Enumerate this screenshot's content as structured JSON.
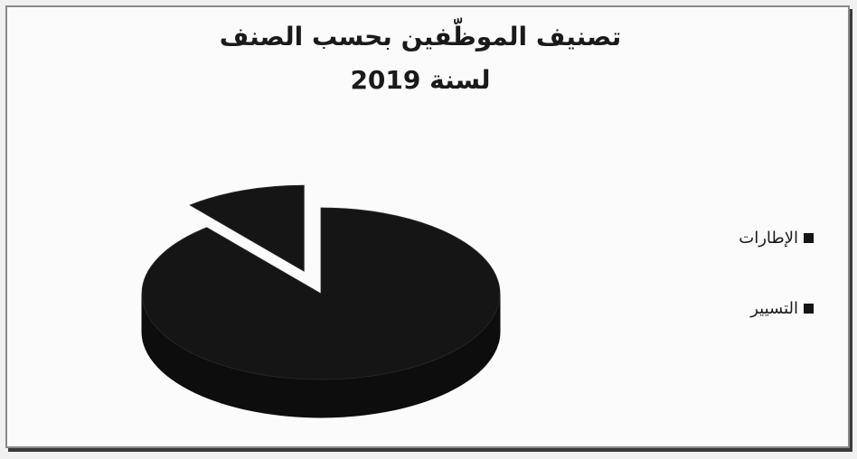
{
  "chart_data": {
    "type": "pie",
    "title": "تصنيف الموظّفين بحسب الصنف",
    "subtitle": "لسنة 2019",
    "categories": [
      "الإطارات",
      "التسيير"
    ],
    "values": [
      11,
      89
    ],
    "colors": [
      "#151515",
      "#151515"
    ],
    "legend_position": "right",
    "style": "3d-exploded"
  }
}
